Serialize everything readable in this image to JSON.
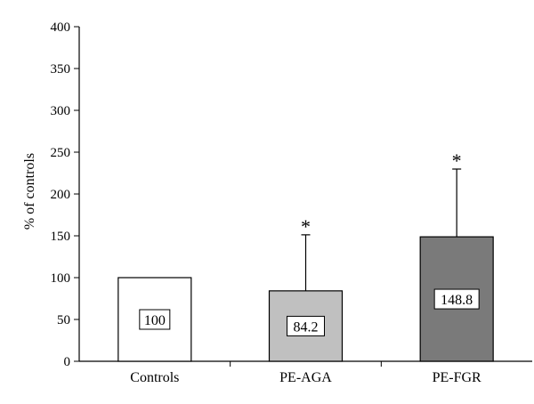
{
  "chart_data": {
    "type": "bar",
    "ylabel": "% of controls",
    "xlabel": "",
    "ylim": [
      0,
      400
    ],
    "yticks": [
      0,
      50,
      100,
      150,
      200,
      250,
      300,
      350,
      400
    ],
    "categories": [
      "Controls",
      "PE-AGA",
      "PE-FGR"
    ],
    "values": [
      100,
      84.2,
      148.8
    ],
    "value_labels": [
      "100",
      "84.2",
      "148.8"
    ],
    "error_upper": [
      0,
      67,
      81
    ],
    "significance": [
      "",
      "*",
      "*"
    ],
    "colors": [
      "#ffffff",
      "#c0c0c0",
      "#7a7a7a"
    ],
    "grid": false,
    "legend": "none"
  }
}
